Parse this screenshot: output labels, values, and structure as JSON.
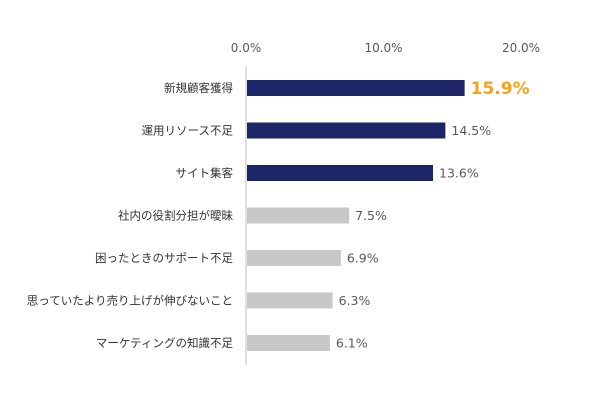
{
  "chart_data": {
    "type": "bar",
    "orientation": "horizontal",
    "categories": [
      "新規顧客獲得",
      "運用リソース不足",
      "サイト集客",
      "社内の役割分担が曖昧",
      "困ったときのサポート不足",
      "思っていたより売り上げが伸びないこと",
      "マーケティングの知識不足"
    ],
    "values": [
      15.9,
      14.5,
      13.6,
      7.5,
      6.9,
      6.3,
      6.1
    ],
    "value_labels": [
      "15.9%",
      "14.5%",
      "13.6%",
      "7.5%",
      "6.9%",
      "6.3%",
      "6.1%"
    ],
    "xlim": [
      0,
      20
    ],
    "x_ticks": [
      0,
      10,
      20
    ],
    "x_tick_labels": [
      "0.0%",
      "10.0%",
      "20.0%"
    ],
    "x_axis_position": "top",
    "grid": false,
    "legend": "none",
    "title": "",
    "xlabel": "",
    "ylabel": "",
    "highlight_index": 0,
    "colors": {
      "top_bar": "#1c2566",
      "other_bar": "#c8c8c8",
      "highlight_label": "#f5a11c",
      "label_text": "#333333",
      "tick_text": "#595959",
      "axis_line": "#c0c0c0"
    },
    "top_group_count": 3
  }
}
